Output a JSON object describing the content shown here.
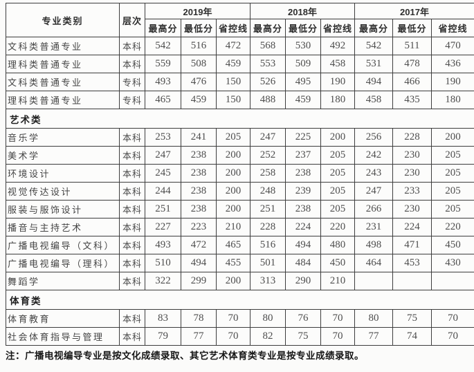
{
  "table": {
    "header": {
      "major": "专业类别",
      "level": "层次",
      "years": [
        "2019年",
        "2018年",
        "2017年"
      ],
      "subcols": [
        "最高分",
        "最低分",
        "省控线"
      ]
    },
    "sections": [
      {
        "title": "",
        "rows": [
          {
            "major": "文科类普通专业",
            "level": "本科",
            "scores": [
              "542",
              "516",
              "472",
              "568",
              "530",
              "492",
              "542",
              "511",
              "470"
            ]
          },
          {
            "major": "理科类普通专业",
            "level": "本科",
            "scores": [
              "559",
              "508",
              "459",
              "553",
              "509",
              "458",
              "531",
              "478",
              "436"
            ]
          },
          {
            "major": "文科类普通专业",
            "level": "专科",
            "scores": [
              "493",
              "476",
              "150",
              "526",
              "495",
              "190",
              "494",
              "466",
              "190"
            ]
          },
          {
            "major": "理科类普通专业",
            "level": "专科",
            "scores": [
              "465",
              "459",
              "150",
              "488",
              "459",
              "180",
              "458",
              "435",
              "180"
            ]
          }
        ]
      },
      {
        "title": "艺术类",
        "rows": [
          {
            "major": "音乐学",
            "level": "本科",
            "scores": [
              "253",
              "241",
              "205",
              "247",
              "225",
              "200",
              "256",
              "228",
              "200"
            ]
          },
          {
            "major": "美术学",
            "level": "本科",
            "scores": [
              "247",
              "238",
              "200",
              "252",
              "237",
              "205",
              "242",
              "230",
              "205"
            ]
          },
          {
            "major": "环境设计",
            "level": "本科",
            "scores": [
              "245",
              "238",
              "200",
              "258",
              "238",
              "205",
              "243",
              "230",
              "205"
            ]
          },
          {
            "major": "视觉传达设计",
            "level": "本科",
            "scores": [
              "244",
              "238",
              "200",
              "248",
              "239",
              "205",
              "247",
              "233",
              "205"
            ]
          },
          {
            "major": "服装与服饰设计",
            "level": "本科",
            "scores": [
              "251",
              "238",
              "200",
              "251",
              "238",
              "205",
              "266",
              "230",
              "205"
            ]
          },
          {
            "major": "播音与主持艺术",
            "level": "本科",
            "scores": [
              "227",
              "223",
              "210",
              "228",
              "224",
              "220",
              "231",
              "224",
              "220"
            ]
          },
          {
            "major": "广播电视编导（文科）",
            "level": "本科",
            "scores": [
              "493",
              "472",
              "465",
              "516",
              "494",
              "480",
              "498",
              "471",
              "450"
            ]
          },
          {
            "major": "广播电视编导（理科）",
            "level": "本科",
            "scores": [
              "510",
              "494",
              "455",
              "501",
              "484",
              "450",
              "464",
              "453",
              "430"
            ]
          },
          {
            "major": "舞蹈学",
            "level": "本科",
            "scores": [
              "322",
              "299",
              "200",
              "313",
              "290",
              "210",
              "",
              "",
              ""
            ]
          }
        ]
      },
      {
        "title": "体育类",
        "rows": [
          {
            "major": "体育教育",
            "level": "本科",
            "scores": [
              "83",
              "78",
              "70",
              "80",
              "76",
              "70",
              "80",
              "75",
              "70"
            ]
          },
          {
            "major": "社会体育指导与管理",
            "level": "本科",
            "scores": [
              "79",
              "77",
              "70",
              "82",
              "75",
              "70",
              "77",
              "74",
              "70"
            ]
          }
        ]
      }
    ],
    "note": "注：广播电视编导专业是按文化成绩录取、其它艺术体育类专业是按专业成绩录取。"
  }
}
